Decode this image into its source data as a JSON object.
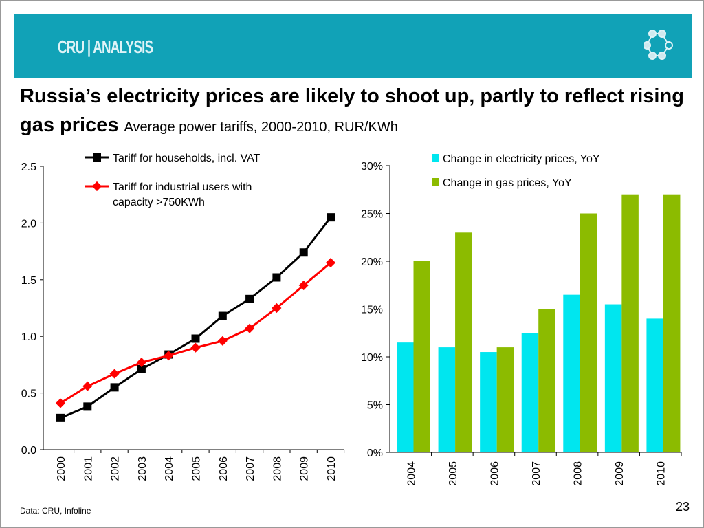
{
  "header": {
    "logo_text": "CRU | ANALYSIS",
    "brand_color": "#11a2b7"
  },
  "title": {
    "main": "Russia’s electricity prices are likely to shoot up, partly to reflect rising gas prices",
    "subtitle": "Average power tariffs, 2000-2010, RUR/KWh"
  },
  "footer": {
    "source": "Data:  CRU, Infoline",
    "page_number": "23"
  },
  "chart_data": [
    {
      "type": "line",
      "categories": [
        "2000",
        "2001",
        "2002",
        "2003",
        "2004",
        "2005",
        "2006",
        "2007",
        "2008",
        "2009",
        "2010"
      ],
      "ylim": [
        0,
        2.5
      ],
      "yticks": [
        "0.0",
        "0.5",
        "1.0",
        "1.5",
        "2.0",
        "2.5"
      ],
      "grid": false,
      "legend": "top",
      "series": [
        {
          "name": "Tariff for households, incl. VAT",
          "color": "#000000",
          "marker": "square",
          "values": [
            0.28,
            0.38,
            0.55,
            0.71,
            0.84,
            0.98,
            1.18,
            1.33,
            1.52,
            1.74,
            2.05
          ]
        },
        {
          "name": "Tariff for industrial users with capacity >750KWh",
          "color": "#ff0000",
          "marker": "diamond",
          "values": [
            0.41,
            0.56,
            0.67,
            0.77,
            0.83,
            0.9,
            0.96,
            1.07,
            1.25,
            1.45,
            1.65
          ]
        }
      ]
    },
    {
      "type": "bar",
      "categories": [
        "2004",
        "2005",
        "2006",
        "2007",
        "2008",
        "2009",
        "2010"
      ],
      "ylim": [
        0,
        30
      ],
      "yticks": [
        "0%",
        "5%",
        "10%",
        "15%",
        "20%",
        "25%",
        "30%"
      ],
      "grid": false,
      "legend": "top-right",
      "series": [
        {
          "name": "Change in electricity prices, YoY",
          "color": "#00e6ef",
          "values": [
            11.5,
            11,
            10.5,
            12.5,
            16.5,
            15.5,
            14
          ]
        },
        {
          "name": "Change in gas prices, YoY",
          "color": "#8cbb00",
          "values": [
            20,
            23,
            11,
            15,
            25,
            27,
            27
          ]
        }
      ]
    }
  ]
}
